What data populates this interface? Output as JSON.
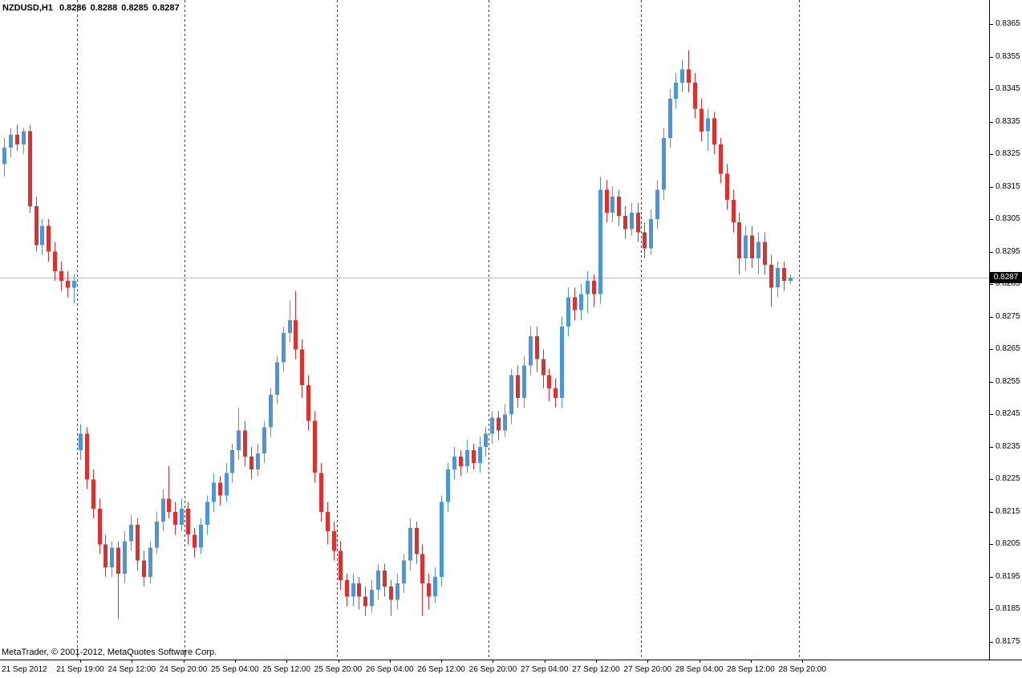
{
  "header": {
    "symbol": "NZDUSD,H1",
    "open": "0.8286",
    "high": "0.8288",
    "low": "0.8285",
    "close": "0.8287"
  },
  "footer": {
    "copyright": "MetaTrader, © 2001-2012, MetaQuotes Software Corp."
  },
  "price_badge": {
    "label": "0.8287"
  },
  "colors": {
    "bull": "#4a96d8",
    "bear": "#df2f2f",
    "separator": "#444444",
    "price_line": "#b8b8b8",
    "badge_bg": "#000000",
    "badge_text": "#ffffff",
    "background": "#ffffff",
    "text": "#000000"
  },
  "chart_data": {
    "type": "candlestick",
    "symbol": "NZDUSD",
    "timeframe": "H1",
    "current_price": 0.8287,
    "y_axis": {
      "min": 0.8175,
      "max": 0.8365,
      "step": 0.001,
      "labels": [
        "0.8365",
        "0.8355",
        "0.8345",
        "0.8335",
        "0.8325",
        "0.8315",
        "0.8305",
        "0.8295",
        "0.8285",
        "0.8275",
        "0.8265",
        "0.8255",
        "0.8245",
        "0.8235",
        "0.8225",
        "0.8215",
        "0.8205",
        "0.8195",
        "0.8185",
        "0.8175"
      ]
    },
    "x_axis_labels": [
      "21 Sep 2012",
      "21 Sep 19:00",
      "24 Sep 12:00",
      "24 Sep 20:00",
      "25 Sep 04:00",
      "25 Sep 12:00",
      "25 Sep 20:00",
      "26 Sep 04:00",
      "26 Sep 12:00",
      "26 Sep 20:00",
      "27 Sep 04:00",
      "27 Sep 12:00",
      "27 Sep 20:00",
      "28 Sep 04:00",
      "28 Sep 12:00",
      "28 Sep 20:00"
    ],
    "day_start_indices": [
      12,
      29,
      53,
      77,
      101,
      126
    ],
    "candles": [
      [
        0.8322,
        0.833,
        0.8318,
        0.8327
      ],
      [
        0.8327,
        0.8333,
        0.8324,
        0.8331
      ],
      [
        0.8331,
        0.8334,
        0.8326,
        0.8328
      ],
      [
        0.8328,
        0.8333,
        0.8325,
        0.8332
      ],
      [
        0.8332,
        0.8334,
        0.8307,
        0.8309
      ],
      [
        0.8309,
        0.8312,
        0.8295,
        0.8297
      ],
      [
        0.8297,
        0.8305,
        0.8294,
        0.8303
      ],
      [
        0.8303,
        0.8305,
        0.8292,
        0.8295
      ],
      [
        0.8295,
        0.8298,
        0.8286,
        0.8289
      ],
      [
        0.8289,
        0.8292,
        0.8283,
        0.8286
      ],
      [
        0.8286,
        0.8289,
        0.8281,
        0.8284
      ],
      [
        0.8284,
        0.8288,
        0.8279,
        0.8286
      ],
      [
        0.8234,
        0.8242,
        0.8231,
        0.8239
      ],
      [
        0.8239,
        0.8241,
        0.8222,
        0.8225
      ],
      [
        0.8225,
        0.8228,
        0.8213,
        0.8216
      ],
      [
        0.8216,
        0.8219,
        0.8202,
        0.8205
      ],
      [
        0.8205,
        0.8208,
        0.8195,
        0.8198
      ],
      [
        0.8198,
        0.8206,
        0.8195,
        0.8204
      ],
      [
        0.8204,
        0.8206,
        0.8182,
        0.8196
      ],
      [
        0.8196,
        0.8209,
        0.8193,
        0.8206
      ],
      [
        0.8206,
        0.8214,
        0.8203,
        0.8211
      ],
      [
        0.8211,
        0.8213,
        0.8197,
        0.82
      ],
      [
        0.82,
        0.8203,
        0.8192,
        0.8195
      ],
      [
        0.8195,
        0.8206,
        0.8193,
        0.8204
      ],
      [
        0.8204,
        0.8215,
        0.8202,
        0.8212
      ],
      [
        0.8212,
        0.8222,
        0.8209,
        0.8219
      ],
      [
        0.8219,
        0.8229,
        0.8213,
        0.8215
      ],
      [
        0.8215,
        0.8218,
        0.8208,
        0.8211
      ],
      [
        0.8211,
        0.8219,
        0.8209,
        0.8216
      ],
      [
        0.8216,
        0.8218,
        0.8205,
        0.8208
      ],
      [
        0.8208,
        0.821,
        0.8201,
        0.8204
      ],
      [
        0.8204,
        0.8213,
        0.8202,
        0.8211
      ],
      [
        0.8211,
        0.822,
        0.8208,
        0.8218
      ],
      [
        0.8218,
        0.8227,
        0.8215,
        0.8224
      ],
      [
        0.8224,
        0.8226,
        0.8217,
        0.822
      ],
      [
        0.822,
        0.823,
        0.8218,
        0.8227
      ],
      [
        0.8227,
        0.8236,
        0.8224,
        0.8234
      ],
      [
        0.8234,
        0.8247,
        0.8231,
        0.824
      ],
      [
        0.824,
        0.8243,
        0.8229,
        0.8232
      ],
      [
        0.8232,
        0.8235,
        0.8225,
        0.8228
      ],
      [
        0.8228,
        0.8236,
        0.8226,
        0.8233
      ],
      [
        0.8233,
        0.8243,
        0.823,
        0.8241
      ],
      [
        0.8241,
        0.8253,
        0.8238,
        0.8251
      ],
      [
        0.8251,
        0.8263,
        0.8248,
        0.8261
      ],
      [
        0.8261,
        0.8272,
        0.8258,
        0.827
      ],
      [
        0.827,
        0.828,
        0.8267,
        0.8274
      ],
      [
        0.8274,
        0.8283,
        0.8262,
        0.8265
      ],
      [
        0.8265,
        0.8268,
        0.825,
        0.8254
      ],
      [
        0.8254,
        0.8257,
        0.824,
        0.8243
      ],
      [
        0.8243,
        0.8246,
        0.8224,
        0.8227
      ],
      [
        0.8227,
        0.823,
        0.8212,
        0.8215
      ],
      [
        0.8215,
        0.8218,
        0.8205,
        0.8209
      ],
      [
        0.8209,
        0.8212,
        0.82,
        0.8203
      ],
      [
        0.8203,
        0.8206,
        0.8191,
        0.8194
      ],
      [
        0.8194,
        0.8196,
        0.8186,
        0.8189
      ],
      [
        0.8189,
        0.8196,
        0.8186,
        0.8193
      ],
      [
        0.8193,
        0.8195,
        0.8185,
        0.8189
      ],
      [
        0.8189,
        0.8192,
        0.8183,
        0.8186
      ],
      [
        0.8186,
        0.8194,
        0.8184,
        0.8191
      ],
      [
        0.8191,
        0.8199,
        0.8188,
        0.8197
      ],
      [
        0.8197,
        0.8199,
        0.8189,
        0.8192
      ],
      [
        0.8192,
        0.8194,
        0.8183,
        0.8188
      ],
      [
        0.8188,
        0.8196,
        0.8185,
        0.8193
      ],
      [
        0.8193,
        0.8202,
        0.819,
        0.82
      ],
      [
        0.82,
        0.8213,
        0.8197,
        0.821
      ],
      [
        0.821,
        0.8212,
        0.8199,
        0.8202
      ],
      [
        0.8202,
        0.8205,
        0.8183,
        0.8193
      ],
      [
        0.8193,
        0.8196,
        0.8185,
        0.8189
      ],
      [
        0.8189,
        0.8198,
        0.8187,
        0.8195
      ],
      [
        0.8195,
        0.822,
        0.8192,
        0.8218
      ],
      [
        0.8218,
        0.823,
        0.8215,
        0.8228
      ],
      [
        0.8228,
        0.8235,
        0.8225,
        0.8232
      ],
      [
        0.8232,
        0.8234,
        0.8226,
        0.8229
      ],
      [
        0.8229,
        0.8237,
        0.8227,
        0.8234
      ],
      [
        0.8234,
        0.8236,
        0.8228,
        0.823
      ],
      [
        0.823,
        0.8238,
        0.8227,
        0.8235
      ],
      [
        0.8235,
        0.8241,
        0.8232,
        0.8239
      ],
      [
        0.8239,
        0.8246,
        0.8236,
        0.8244
      ],
      [
        0.8244,
        0.8246,
        0.8237,
        0.824
      ],
      [
        0.824,
        0.8248,
        0.8238,
        0.8245
      ],
      [
        0.8245,
        0.8259,
        0.8242,
        0.8257
      ],
      [
        0.8257,
        0.826,
        0.8247,
        0.825
      ],
      [
        0.825,
        0.8263,
        0.8247,
        0.826
      ],
      [
        0.826,
        0.8272,
        0.8257,
        0.8269
      ],
      [
        0.8269,
        0.8272,
        0.8258,
        0.8262
      ],
      [
        0.8262,
        0.8265,
        0.8253,
        0.8257
      ],
      [
        0.8257,
        0.8259,
        0.8249,
        0.8253
      ],
      [
        0.8253,
        0.8256,
        0.8247,
        0.825
      ],
      [
        0.825,
        0.8275,
        0.8247,
        0.8272
      ],
      [
        0.8272,
        0.8284,
        0.8269,
        0.8281
      ],
      [
        0.8281,
        0.8284,
        0.8274,
        0.8277
      ],
      [
        0.8277,
        0.8285,
        0.8274,
        0.8282
      ],
      [
        0.8282,
        0.8289,
        0.8276,
        0.8286
      ],
      [
        0.8286,
        0.8288,
        0.8278,
        0.8282
      ],
      [
        0.8282,
        0.8318,
        0.8279,
        0.8314
      ],
      [
        0.8314,
        0.8317,
        0.8304,
        0.8307
      ],
      [
        0.8307,
        0.8315,
        0.8304,
        0.8312
      ],
      [
        0.8312,
        0.8314,
        0.8303,
        0.8306
      ],
      [
        0.8306,
        0.8309,
        0.8299,
        0.8302
      ],
      [
        0.8302,
        0.831,
        0.83,
        0.8307
      ],
      [
        0.8307,
        0.831,
        0.8298,
        0.8301
      ],
      [
        0.8301,
        0.8304,
        0.8293,
        0.8296
      ],
      [
        0.8296,
        0.8308,
        0.8294,
        0.8305
      ],
      [
        0.8305,
        0.8317,
        0.8302,
        0.8314
      ],
      [
        0.8314,
        0.8333,
        0.8311,
        0.833
      ],
      [
        0.833,
        0.8345,
        0.8327,
        0.8342
      ],
      [
        0.8342,
        0.835,
        0.8339,
        0.8347
      ],
      [
        0.8347,
        0.8354,
        0.8344,
        0.8351
      ],
      [
        0.8351,
        0.8357,
        0.8344,
        0.8347
      ],
      [
        0.8347,
        0.835,
        0.8336,
        0.8339
      ],
      [
        0.8339,
        0.8342,
        0.8329,
        0.8332
      ],
      [
        0.8332,
        0.8339,
        0.8326,
        0.8336
      ],
      [
        0.8336,
        0.8338,
        0.8325,
        0.8328
      ],
      [
        0.8328,
        0.833,
        0.8316,
        0.8319
      ],
      [
        0.8319,
        0.8322,
        0.8308,
        0.8311
      ],
      [
        0.8311,
        0.8314,
        0.8301,
        0.8304
      ],
      [
        0.8304,
        0.8307,
        0.8288,
        0.8293
      ],
      [
        0.8293,
        0.8303,
        0.8289,
        0.83
      ],
      [
        0.83,
        0.8303,
        0.829,
        0.8293
      ],
      [
        0.8293,
        0.8301,
        0.8288,
        0.8298
      ],
      [
        0.8298,
        0.8301,
        0.8288,
        0.8291
      ],
      [
        0.8291,
        0.8294,
        0.8278,
        0.8284
      ],
      [
        0.8284,
        0.8292,
        0.8281,
        0.829
      ],
      [
        0.829,
        0.8292,
        0.8283,
        0.8286
      ],
      [
        0.8286,
        0.8288,
        0.8285,
        0.8287
      ]
    ]
  }
}
